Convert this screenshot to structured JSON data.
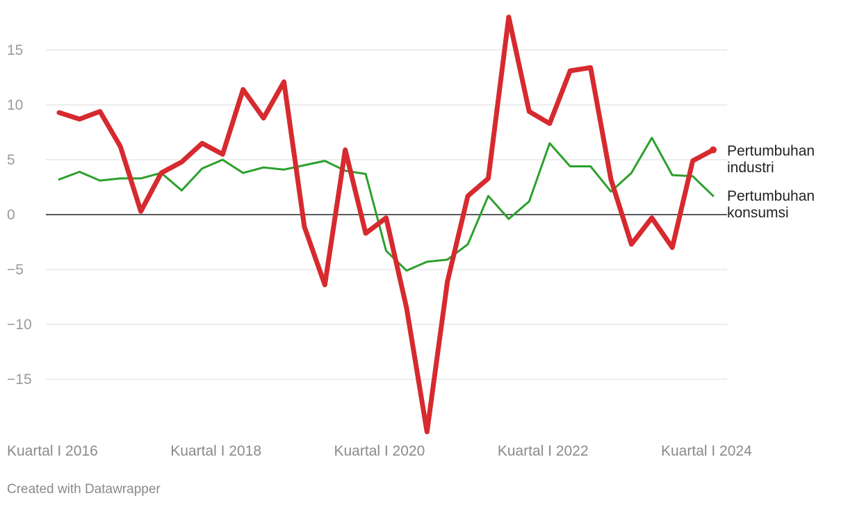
{
  "chart_data": {
    "type": "line",
    "title": "",
    "xlabel": "",
    "ylabel": "",
    "ylim": [
      -20,
      18
    ],
    "yticks": [
      {
        "value": 15,
        "label": "15"
      },
      {
        "value": 10,
        "label": "10"
      },
      {
        "value": 5,
        "label": "5"
      },
      {
        "value": 0,
        "label": "0"
      },
      {
        "value": -5,
        "label": "−5"
      },
      {
        "value": -10,
        "label": "−10"
      },
      {
        "value": -15,
        "label": "−15"
      }
    ],
    "x": [
      "Q1 2016",
      "Q2 2016",
      "Q3 2016",
      "Q4 2016",
      "Q1 2017",
      "Q2 2017",
      "Q3 2017",
      "Q4 2017",
      "Q1 2018",
      "Q2 2018",
      "Q3 2018",
      "Q4 2018",
      "Q1 2019",
      "Q2 2019",
      "Q3 2019",
      "Q4 2019",
      "Q1 2020",
      "Q2 2020",
      "Q3 2020",
      "Q4 2020",
      "Q1 2021",
      "Q2 2021",
      "Q3 2021",
      "Q4 2021",
      "Q1 2022",
      "Q2 2022",
      "Q3 2022",
      "Q4 2022",
      "Q1 2023",
      "Q2 2023",
      "Q3 2023",
      "Q4 2023",
      "Q1 2024"
    ],
    "xticks": [
      {
        "index": 0,
        "label": "Kuartal I 2016"
      },
      {
        "index": 8,
        "label": "Kuartal I 2018"
      },
      {
        "index": 16,
        "label": "Kuartal I 2020"
      },
      {
        "index": 24,
        "label": "Kuartal I 2022"
      },
      {
        "index": 32,
        "label": "Kuartal I 2024"
      }
    ],
    "grid": true,
    "series": [
      {
        "name": "Pertumbuhan industri",
        "label_lines": [
          "Pertumbuhan",
          "industri"
        ],
        "color": "#d62a2f",
        "values": [
          9.3,
          8.7,
          9.4,
          6.2,
          0.3,
          3.8,
          4.8,
          6.5,
          5.5,
          11.4,
          8.8,
          12.1,
          -1.1,
          -6.4,
          5.9,
          -1.7,
          -0.3,
          -8.5,
          -19.8,
          -6.1,
          1.7,
          3.3,
          18.0,
          9.4,
          8.3,
          13.1,
          13.4,
          3.2,
          -2.7,
          -0.3,
          -3.0,
          4.9,
          5.9
        ]
      },
      {
        "name": "Pertumbuhan konsumsi",
        "label_lines": [
          "Pertumbuhan",
          "konsumsi"
        ],
        "color": "#2ca02c",
        "values": [
          3.2,
          3.9,
          3.1,
          3.3,
          3.3,
          3.8,
          2.2,
          4.2,
          5.0,
          3.8,
          4.3,
          4.1,
          4.5,
          4.9,
          4.0,
          3.7,
          -3.3,
          -5.1,
          -4.3,
          -4.1,
          -2.7,
          1.7,
          -0.4,
          1.2,
          6.5,
          4.4,
          4.4,
          2.1,
          3.8,
          7.0,
          3.6,
          3.5,
          1.7
        ]
      }
    ]
  },
  "footer": {
    "credit": "Created with Datawrapper"
  }
}
